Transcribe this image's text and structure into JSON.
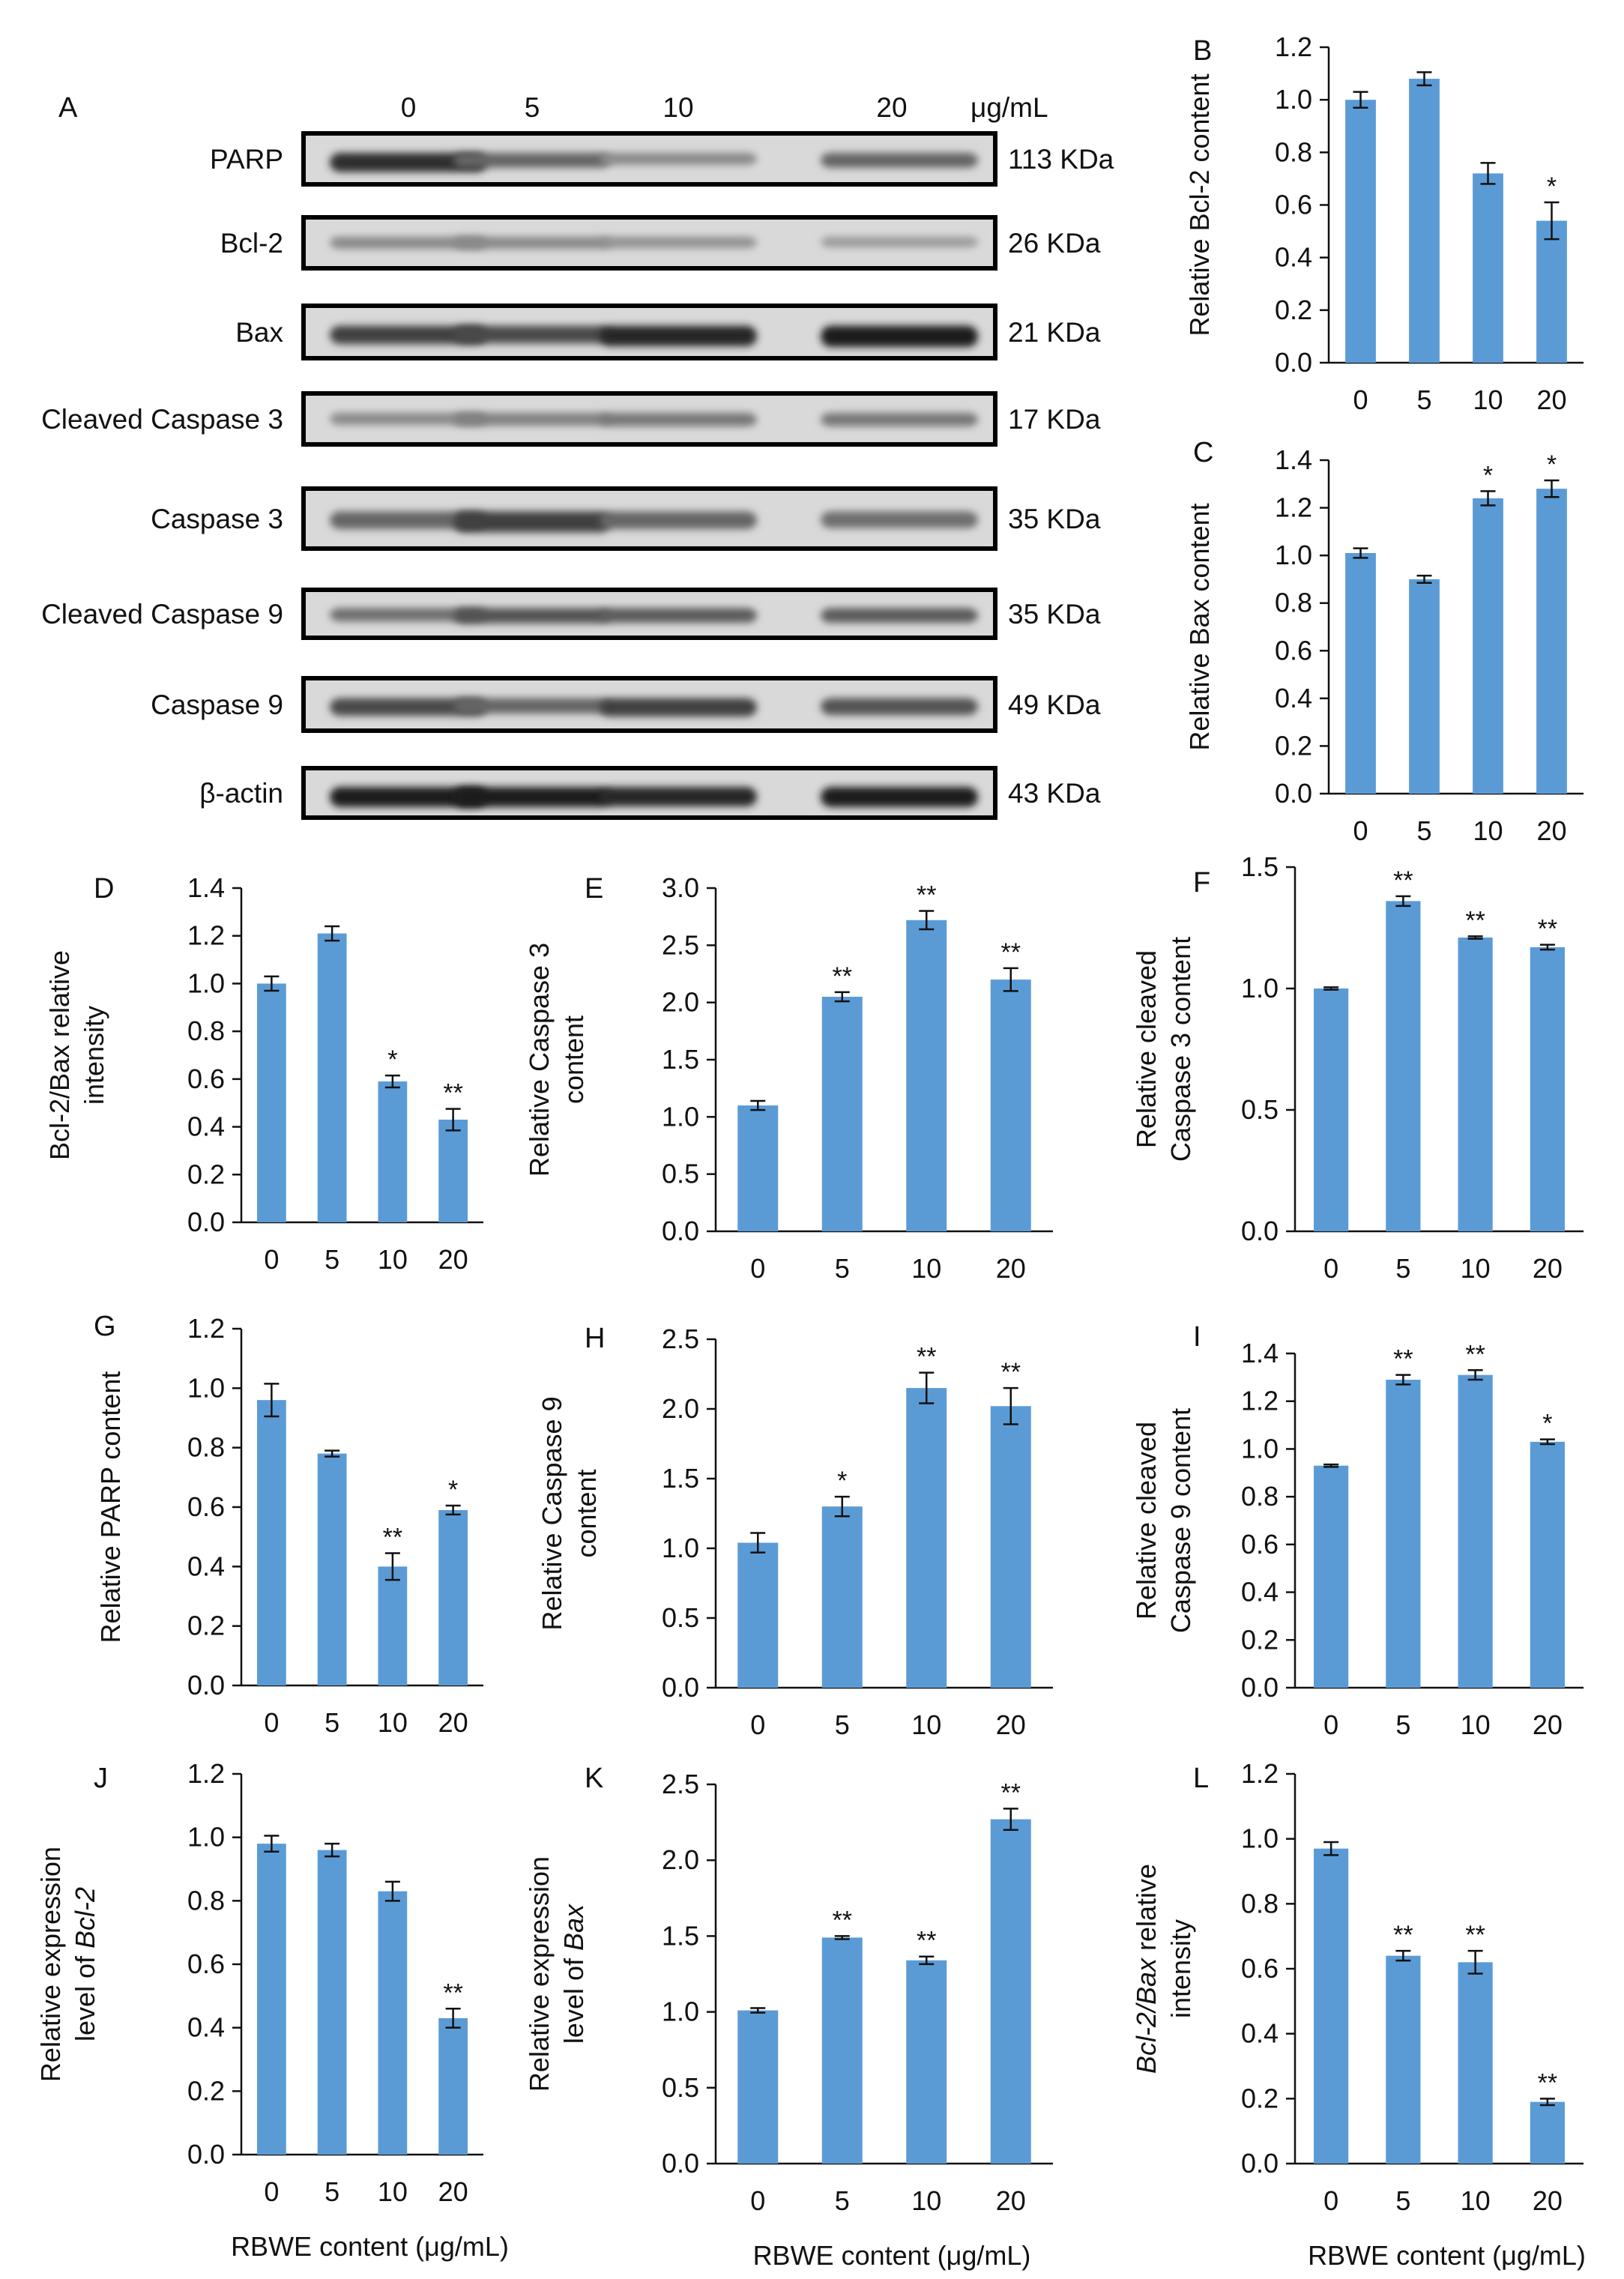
{
  "colors": {
    "bar": "#5b9bd5",
    "axis": "#111111",
    "band": "#1a1a1a"
  },
  "blot": {
    "letter": "A",
    "doses": [
      "0",
      "5",
      "10",
      "20"
    ],
    "unit": "μg/mL",
    "rows": [
      {
        "label": "PARP",
        "kda": "113 KDa",
        "intensity": [
          0.85,
          0.55,
          0.35,
          0.55
        ]
      },
      {
        "label": "Bcl-2",
        "kda": "26 KDa",
        "intensity": [
          0.35,
          0.35,
          0.3,
          0.25
        ]
      },
      {
        "label": "Bax",
        "kda": "21 KDa",
        "intensity": [
          0.75,
          0.7,
          0.9,
          0.95
        ]
      },
      {
        "label": "Cleaved Caspase 3",
        "kda": "17 KDa",
        "intensity": [
          0.35,
          0.4,
          0.45,
          0.45
        ]
      },
      {
        "label": "Caspase 3",
        "kda": "35 KDa",
        "intensity": [
          0.55,
          0.75,
          0.55,
          0.5
        ]
      },
      {
        "label": "Cleaved Caspase 9",
        "kda": "35 KDa",
        "intensity": [
          0.5,
          0.65,
          0.6,
          0.6
        ]
      },
      {
        "label": "Caspase 9",
        "kda": "49 KDa",
        "intensity": [
          0.7,
          0.55,
          0.75,
          0.65
        ]
      },
      {
        "label": "β-actin",
        "kda": "43 KDa",
        "intensity": [
          0.95,
          0.95,
          0.9,
          0.95
        ]
      }
    ]
  },
  "chart_data": [
    {
      "type": "bar",
      "letter": "B",
      "categories": [
        "0",
        "5",
        "10",
        "20"
      ],
      "values": [
        1.0,
        1.08,
        0.72,
        0.54
      ],
      "errors": [
        0.03,
        0.025,
        0.04,
        0.07
      ],
      "stars": [
        "",
        "",
        "",
        "*"
      ],
      "ylim": [
        0,
        1.2
      ],
      "yticks": [
        "0.0",
        "0.2",
        "0.4",
        "0.6",
        "0.8",
        "1.0",
        "1.2"
      ],
      "ylabel": [
        "Relative Bcl-2 content"
      ],
      "xlabel": ""
    },
    {
      "type": "bar",
      "letter": "C",
      "categories": [
        "0",
        "5",
        "10",
        "20"
      ],
      "values": [
        1.01,
        0.9,
        1.24,
        1.28
      ],
      "errors": [
        0.02,
        0.015,
        0.03,
        0.035
      ],
      "stars": [
        "",
        "",
        "*",
        "*"
      ],
      "ylim": [
        0,
        1.4
      ],
      "yticks": [
        "0.0",
        "0.2",
        "0.4",
        "0.6",
        "0.8",
        "1.0",
        "1.2",
        "1.4"
      ],
      "ylabel": [
        "Relative Bax content"
      ],
      "xlabel": ""
    },
    {
      "type": "bar",
      "letter": "D",
      "categories": [
        "0",
        "5",
        "10",
        "20"
      ],
      "values": [
        1.0,
        1.21,
        0.59,
        0.43
      ],
      "errors": [
        0.03,
        0.03,
        0.025,
        0.045
      ],
      "stars": [
        "",
        "",
        "*",
        "**"
      ],
      "ylim": [
        0,
        1.4
      ],
      "yticks": [
        "0.0",
        "0.2",
        "0.4",
        "0.6",
        "0.8",
        "1.0",
        "1.2",
        "1.4"
      ],
      "ylabel": [
        "Bcl-2/Bax relative",
        "intensity"
      ],
      "xlabel": ""
    },
    {
      "type": "bar",
      "letter": "E",
      "categories": [
        "0",
        "5",
        "10",
        "20"
      ],
      "values": [
        1.1,
        2.05,
        2.72,
        2.2
      ],
      "errors": [
        0.04,
        0.04,
        0.08,
        0.1
      ],
      "stars": [
        "",
        "**",
        "**",
        "**"
      ],
      "ylim": [
        0,
        3.0
      ],
      "yticks": [
        "0.0",
        "0.5",
        "1.0",
        "1.5",
        "2.0",
        "2.5",
        "3.0"
      ],
      "ylabel": [
        "Relative Caspase 3",
        "content"
      ],
      "xlabel": ""
    },
    {
      "type": "bar",
      "letter": "F",
      "categories": [
        "0",
        "5",
        "10",
        "20"
      ],
      "values": [
        1.0,
        1.36,
        1.21,
        1.17
      ],
      "errors": [
        0.005,
        0.02,
        0.005,
        0.01
      ],
      "stars": [
        "",
        "**",
        "**",
        "**"
      ],
      "ylim": [
        0,
        1.5
      ],
      "yticks": [
        "0.0",
        "0.5",
        "1.0",
        "1.5"
      ],
      "ylabel": [
        "Relative cleaved",
        "Caspase 3 content"
      ],
      "xlabel": ""
    },
    {
      "type": "bar",
      "letter": "G",
      "categories": [
        "0",
        "5",
        "10",
        "20"
      ],
      "values": [
        0.96,
        0.78,
        0.4,
        0.59
      ],
      "errors": [
        0.055,
        0.01,
        0.045,
        0.015
      ],
      "stars": [
        "",
        "",
        "**",
        "*"
      ],
      "ylim": [
        0,
        1.2
      ],
      "yticks": [
        "0.0",
        "0.2",
        "0.4",
        "0.6",
        "0.8",
        "1.0",
        "1.2"
      ],
      "ylabel": [
        "Relative PARP content"
      ],
      "xlabel": ""
    },
    {
      "type": "bar",
      "letter": "H",
      "categories": [
        "0",
        "5",
        "10",
        "20"
      ],
      "values": [
        1.04,
        1.3,
        2.15,
        2.02
      ],
      "errors": [
        0.07,
        0.07,
        0.11,
        0.13
      ],
      "stars": [
        "",
        "*",
        "**",
        "**"
      ],
      "ylim": [
        0,
        2.5
      ],
      "yticks": [
        "0.0",
        "0.5",
        "1.0",
        "1.5",
        "2.0",
        "2.5"
      ],
      "ylabel": [
        "Relative Caspase 9",
        "content"
      ],
      "xlabel": ""
    },
    {
      "type": "bar",
      "letter": "I",
      "categories": [
        "0",
        "5",
        "10",
        "20"
      ],
      "values": [
        0.93,
        1.29,
        1.31,
        1.03
      ],
      "errors": [
        0.005,
        0.02,
        0.02,
        0.01
      ],
      "stars": [
        "",
        "**",
        "**",
        "*"
      ],
      "ylim": [
        0,
        1.4
      ],
      "yticks": [
        "0.0",
        "0.2",
        "0.4",
        "0.6",
        "0.8",
        "1.0",
        "1.2",
        "1.4"
      ],
      "ylabel": [
        "Relative cleaved",
        "Caspase 9  content"
      ],
      "xlabel": ""
    },
    {
      "type": "bar",
      "letter": "J",
      "categories": [
        "0",
        "5",
        "10",
        "20"
      ],
      "values": [
        0.98,
        0.96,
        0.83,
        0.43
      ],
      "errors": [
        0.025,
        0.02,
        0.03,
        0.03
      ],
      "stars": [
        "",
        "",
        "",
        "**"
      ],
      "ylim": [
        0,
        1.2
      ],
      "yticks": [
        "0.0",
        "0.2",
        "0.4",
        "0.6",
        "0.8",
        "1.0",
        "1.2"
      ],
      "ylabel": [
        "Relative expression",
        "level of |Bcl-2"
      ],
      "xlabel": "RBWE content (μg/mL)"
    },
    {
      "type": "bar",
      "letter": "K",
      "categories": [
        "0",
        "5",
        "10",
        "20"
      ],
      "values": [
        1.01,
        1.49,
        1.34,
        2.27
      ],
      "errors": [
        0.015,
        0.01,
        0.025,
        0.07
      ],
      "stars": [
        "",
        "**",
        "**",
        "**"
      ],
      "ylim": [
        0,
        2.5
      ],
      "yticks": [
        "0.0",
        "0.5",
        "1.0",
        "1.5",
        "2.0",
        "2.5"
      ],
      "ylabel": [
        "Relative expression",
        "level of |Bax"
      ],
      "xlabel": "RBWE content (μg/mL)"
    },
    {
      "type": "bar",
      "letter": "L",
      "categories": [
        "0",
        "5",
        "10",
        "20"
      ],
      "values": [
        0.97,
        0.64,
        0.62,
        0.19
      ],
      "errors": [
        0.02,
        0.015,
        0.035,
        0.01
      ],
      "stars": [
        "",
        "**",
        "**",
        "**"
      ],
      "ylim": [
        0,
        1.2
      ],
      "yticks": [
        "0.0",
        "0.2",
        "0.4",
        "0.6",
        "0.8",
        "1.0",
        "1.2"
      ],
      "ylabel": [
        "|Bcl-2/Bax| relative",
        "intensity"
      ],
      "xlabel": "RBWE content (μg/mL)"
    }
  ]
}
